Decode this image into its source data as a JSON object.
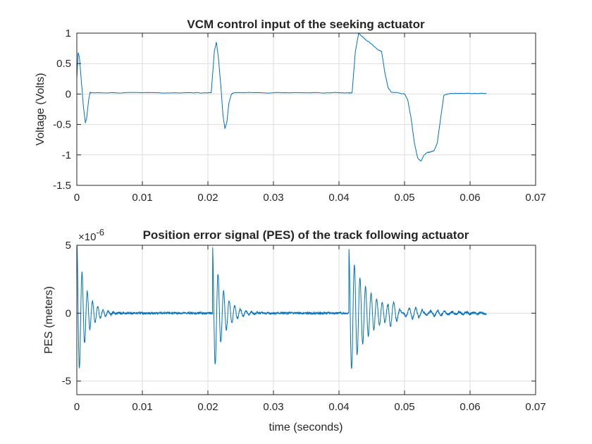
{
  "chart_data": [
    {
      "type": "line",
      "title": "VCM control input of the seeking actuator",
      "xlabel": "",
      "ylabel": "Voltage (Volts)",
      "xlim": [
        0,
        0.07
      ],
      "ylim": [
        -1.5,
        1
      ],
      "xticks": [
        0,
        0.01,
        0.02,
        0.03,
        0.04,
        0.05,
        0.06,
        0.07
      ],
      "xtick_labels": [
        "0",
        "0.01",
        "0.02",
        "0.03",
        "0.04",
        "0.05",
        "0.06",
        "0.07"
      ],
      "yticks": [
        -1.5,
        -1,
        -0.5,
        0,
        0.5,
        1
      ],
      "ytick_labels": [
        "-1.5",
        "-1",
        "-0.5",
        "0",
        "0.5",
        "1"
      ],
      "grid": true,
      "color": "#0072bd",
      "series": [
        {
          "x": [
            0,
            0.0002,
            0.0004,
            0.0007,
            0.001,
            0.0013,
            0.0015,
            0.0018,
            0.002,
            0.0022,
            0.005,
            0.01,
            0.015,
            0.0195,
            0.0205,
            0.0207,
            0.021,
            0.0213,
            0.0216,
            0.022,
            0.0223,
            0.0226,
            0.0229,
            0.0232,
            0.0236,
            0.024,
            0.03,
            0.035,
            0.04,
            0.0415,
            0.042,
            0.0425,
            0.043,
            0.0435,
            0.044,
            0.045,
            0.046,
            0.0465,
            0.047,
            0.0475,
            0.048,
            0.049,
            0.05,
            0.0505,
            0.051,
            0.0515,
            0.052,
            0.0525,
            0.053,
            0.0535,
            0.054,
            0.0545,
            0.055,
            0.0555,
            0.056,
            0.057,
            0.06,
            0.0625
          ],
          "y": [
            0.25,
            0.68,
            0.6,
            0.2,
            -0.2,
            -0.47,
            -0.4,
            -0.1,
            0.02,
            0.02,
            0.02,
            0.02,
            0.02,
            0.02,
            0.02,
            0.3,
            0.72,
            0.85,
            0.6,
            0.1,
            -0.35,
            -0.57,
            -0.45,
            -0.15,
            0.0,
            0.02,
            0.02,
            0.02,
            0.02,
            0.02,
            0.02,
            0.7,
            1.0,
            0.95,
            0.9,
            0.82,
            0.72,
            0.7,
            0.35,
            0.1,
            0.03,
            0.02,
            0.0,
            -0.1,
            -0.4,
            -0.8,
            -1.05,
            -1.1,
            -1.0,
            -0.96,
            -0.95,
            -0.93,
            -0.8,
            -0.4,
            -0.02,
            0.01,
            0.01,
            0.01
          ]
        }
      ]
    },
    {
      "type": "line",
      "title": "Position error signal (PES) of the track following actuator",
      "exponent_label": "×10",
      "exponent_power": "-6",
      "xlabel": "time (seconds)",
      "ylabel": "PES (meters)",
      "xlim": [
        0,
        0.07
      ],
      "ylim": [
        -6,
        5
      ],
      "y_scale_factor": 1e-06,
      "xticks": [
        0,
        0.01,
        0.02,
        0.03,
        0.04,
        0.05,
        0.06,
        0.07
      ],
      "xtick_labels": [
        "0",
        "0.01",
        "0.02",
        "0.03",
        "0.04",
        "0.05",
        "0.06",
        "0.07"
      ],
      "yticks": [
        -5,
        0,
        5
      ],
      "ytick_labels": [
        "-5",
        "0",
        "5"
      ],
      "grid": true,
      "color": "#0072bd",
      "series": [
        {
          "bursts": [
            {
              "start": 0.0,
              "amplitude": 5.5,
              "decay": 0.0013,
              "period": 0.0008,
              "length": 0.01
            },
            {
              "start": 0.0207,
              "amplitude": 5.0,
              "decay": 0.0015,
              "period": 0.00085,
              "length": 0.01
            },
            {
              "start": 0.0415,
              "amplitude": 4.8,
              "decay": 0.0028,
              "period": 0.00085,
              "length": 0.021
            }
          ],
          "noise": 0.08,
          "end": 0.0625
        }
      ]
    }
  ]
}
